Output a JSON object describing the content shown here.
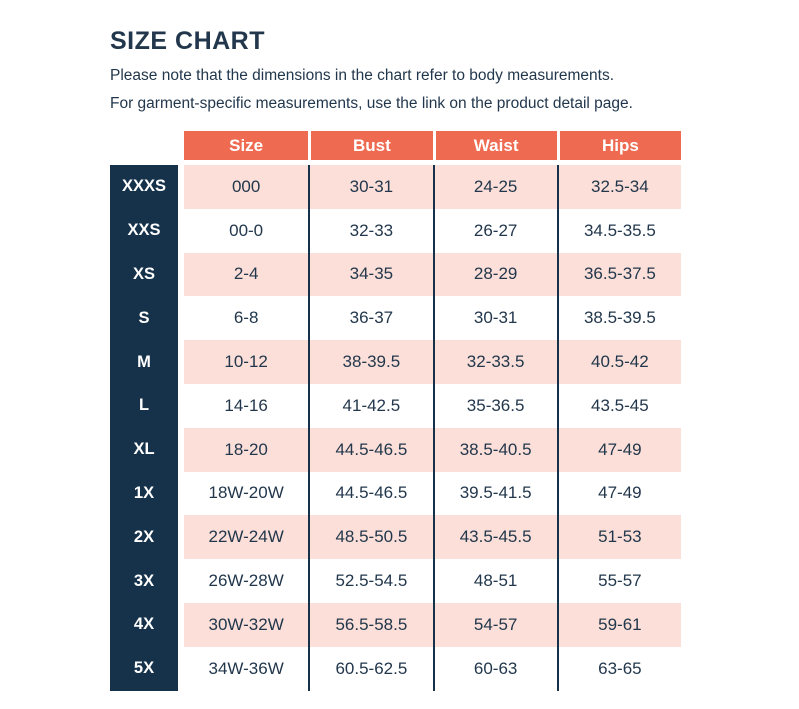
{
  "header": {
    "title": "SIZE CHART",
    "subtitle_line1": "Please note that the dimensions in the chart refer to body measurements.",
    "subtitle_line2": "For garment-specific measurements, use the link on the product detail page."
  },
  "chart_data": {
    "type": "table",
    "columns": [
      "Size",
      "Bust",
      "Waist",
      "Hips"
    ],
    "row_labels": [
      "XXXS",
      "XXS",
      "XS",
      "S",
      "M",
      "L",
      "XL",
      "1X",
      "2X",
      "3X",
      "4X",
      "5X"
    ],
    "rows": [
      [
        "000",
        "30-31",
        "24-25",
        "32.5-34"
      ],
      [
        "00-0",
        "32-33",
        "26-27",
        "34.5-35.5"
      ],
      [
        "2-4",
        "34-35",
        "28-29",
        "36.5-37.5"
      ],
      [
        "6-8",
        "36-37",
        "30-31",
        "38.5-39.5"
      ],
      [
        "10-12",
        "38-39.5",
        "32-33.5",
        "40.5-42"
      ],
      [
        "14-16",
        "41-42.5",
        "35-36.5",
        "43.5-45"
      ],
      [
        "18-20",
        "44.5-46.5",
        "38.5-40.5",
        "47-49"
      ],
      [
        "18W-20W",
        "44.5-46.5",
        "39.5-41.5",
        "47-49"
      ],
      [
        "22W-24W",
        "48.5-50.5",
        "43.5-45.5",
        "51-53"
      ],
      [
        "26W-28W",
        "52.5-54.5",
        "48-51",
        "55-57"
      ],
      [
        "30W-32W",
        "56.5-58.5",
        "54-57",
        "59-61"
      ],
      [
        "34W-36W",
        "60.5-62.5",
        "60-63",
        "63-65"
      ]
    ]
  },
  "colors": {
    "navy": "#16324b",
    "coral_header": "#ee6a50",
    "pink_row": "#fbdfd8",
    "text_navy": "#22374c",
    "white": "#ffffff"
  }
}
